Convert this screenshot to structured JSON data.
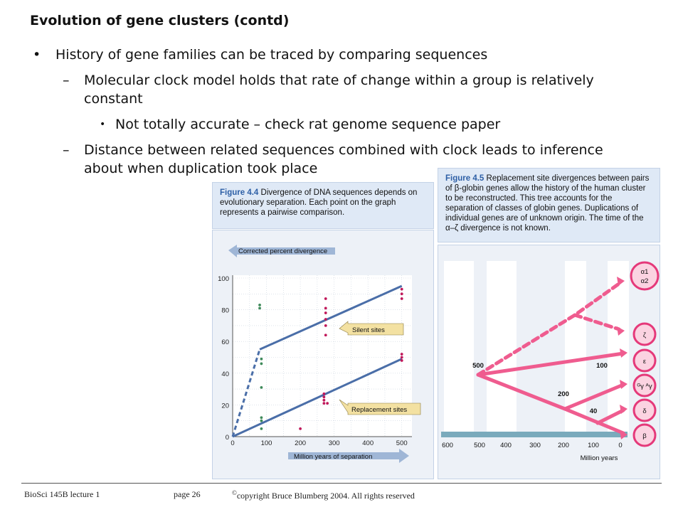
{
  "title": "Evolution of gene clusters (contd)",
  "bullets": {
    "b1": "History of gene families can be traced by comparing sequences",
    "d1": "Molecular clock model holds that rate of change within a group is relatively constant",
    "s1": "Not totally accurate – check rat genome sequence paper",
    "d2": "Distance between related sequences combined with clock leads to inference about when duplication took place"
  },
  "markers": {
    "bullet": "•",
    "dash": "–"
  },
  "fig44": {
    "label": "Figure 4.4",
    "caption": "Divergence of DNA sequences depends on evolutionary separation. Each point on the graph represents a pairwise comparison.",
    "y_arrow_label": "Corrected percent divergence",
    "x_arrow_label": "Million years of separation",
    "y_ticks": [
      "0",
      "20",
      "40",
      "60",
      "80",
      "100"
    ],
    "x_ticks": [
      "0",
      "100",
      "200",
      "300",
      "400",
      "500"
    ],
    "callout_silent": "Silent sites",
    "callout_replacement": "Replacement sites",
    "colors": {
      "line": "#4a6ea8",
      "green": "#3e8a5a",
      "magenta": "#c0185a",
      "callout": "#f3e1a2"
    }
  },
  "fig45": {
    "label": "Figure 4.5",
    "caption": "Replacement site divergences between pairs of β-globin genes allow the history of the human cluster to be reconstructed. This tree accounts for the separation of classes of globin genes. Duplications of individual genes are of unknown origin. The time of the α–ζ divergence is not known.",
    "x_ticks": [
      "600",
      "500",
      "400",
      "300",
      "200",
      "100",
      "0"
    ],
    "x_label": "Million years",
    "node_labels": [
      "500",
      "100",
      "200",
      "40"
    ],
    "genes": [
      "α1",
      "α2",
      "ζ",
      "ε",
      "ᴳγ ᴬγ",
      "δ",
      "β"
    ],
    "colors": {
      "branch": "#ef5c8f",
      "gene_circle": "#e5397a",
      "axis_bar": "#7aaabc"
    }
  },
  "chart_data": {
    "type": "scatter",
    "title": "",
    "xlabel": "Million years of separation",
    "ylabel": "Corrected percent divergence",
    "xlim": [
      0,
      530
    ],
    "ylim": [
      0,
      100
    ],
    "series": [
      {
        "name": "Silent sites",
        "points": [
          [
            80,
            83
          ],
          [
            80,
            81
          ],
          [
            85,
            49
          ],
          [
            85,
            46
          ],
          [
            275,
            87
          ],
          [
            275,
            81
          ],
          [
            275,
            78
          ],
          [
            275,
            74
          ],
          [
            275,
            70
          ],
          [
            275,
            64
          ],
          [
            500,
            93
          ],
          [
            500,
            90
          ],
          [
            500,
            87
          ]
        ]
      },
      {
        "name": "Replacement sites",
        "points": [
          [
            85,
            31
          ],
          [
            85,
            12
          ],
          [
            85,
            10
          ],
          [
            85,
            5
          ],
          [
            200,
            5
          ],
          [
            270,
            27
          ],
          [
            270,
            25
          ],
          [
            270,
            23
          ],
          [
            270,
            21
          ],
          [
            280,
            21
          ],
          [
            500,
            52
          ],
          [
            500,
            50
          ],
          [
            500,
            48
          ]
        ]
      }
    ],
    "fit_lines": [
      {
        "name": "Silent sites",
        "points": [
          [
            0,
            0
          ],
          [
            80,
            55
          ],
          [
            500,
            95
          ]
        ]
      },
      {
        "name": "Replacement sites",
        "points": [
          [
            0,
            0
          ],
          [
            500,
            49
          ]
        ]
      }
    ]
  },
  "footer": {
    "course": "BioSci 145B lecture 1",
    "page": "page 26",
    "copyright_mark": "©",
    "copyright": "copyright Bruce Blumberg 2004. All rights reserved"
  }
}
